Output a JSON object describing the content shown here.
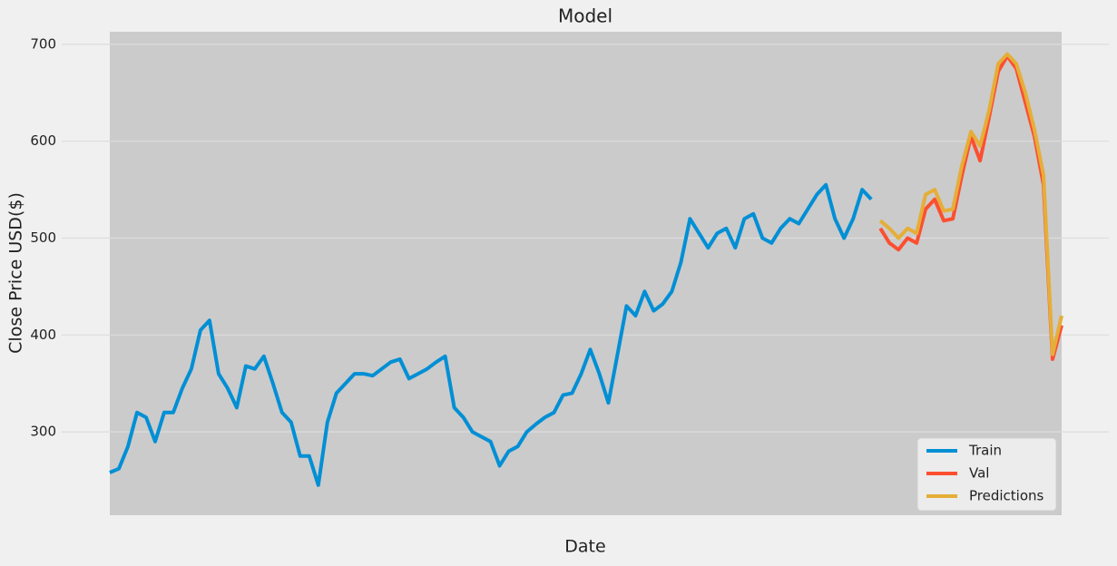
{
  "chart_data": {
    "type": "line",
    "title": "Model",
    "x_label": "Date",
    "y_label": "Close Price USD($)",
    "categories": [
      null,
      null,
      null,
      null,
      null,
      null,
      null,
      null,
      null,
      null,
      null,
      null,
      null,
      null,
      null,
      null,
      null,
      null,
      null,
      null,
      null,
      null,
      null,
      null,
      null,
      null,
      null,
      null,
      null,
      null,
      null,
      null,
      null,
      null,
      null,
      null,
      null,
      null,
      null,
      null,
      null,
      null,
      null,
      null,
      null,
      null,
      null,
      null,
      null,
      null,
      null,
      null,
      null,
      null,
      null,
      null,
      null,
      null,
      null,
      null,
      null,
      null,
      null,
      null,
      null,
      null,
      null,
      null,
      null,
      null,
      null,
      null,
      null,
      null,
      null,
      null,
      null,
      null,
      null,
      null,
      null,
      null,
      null,
      null,
      null,
      null,
      null,
      null,
      null,
      null,
      null,
      null,
      null,
      null,
      null,
      null,
      null,
      null,
      null,
      null,
      null,
      null,
      null,
      null,
      null,
      null
    ],
    "series": [
      {
        "name": "Train",
        "color": "#008fd5",
        "values": [
          258,
          262,
          285,
          320,
          315,
          290,
          320,
          320,
          345,
          365,
          405,
          415,
          360,
          345,
          325,
          368,
          365,
          378,
          350,
          320,
          310,
          275,
          275,
          245,
          310,
          340,
          350,
          360,
          360,
          358,
          365,
          372,
          375,
          355,
          360,
          365,
          372,
          378,
          325,
          315,
          300,
          295,
          290,
          265,
          280,
          285,
          300,
          308,
          315,
          320,
          338,
          340,
          360,
          385,
          360,
          330,
          380,
          430,
          420,
          445,
          425,
          432,
          445,
          475,
          520,
          505,
          490,
          505,
          510,
          490,
          520,
          525,
          500,
          495,
          510,
          520,
          515,
          530,
          545,
          555,
          520,
          500,
          520,
          550,
          540,
          null,
          null,
          null,
          null,
          null,
          null,
          null,
          null,
          null,
          null,
          null,
          null,
          null,
          null,
          null,
          null,
          null,
          null,
          null,
          null,
          null
        ]
      },
      {
        "name": "Val",
        "color": "#fc4f30",
        "values": [
          null,
          null,
          null,
          null,
          null,
          null,
          null,
          null,
          null,
          null,
          null,
          null,
          null,
          null,
          null,
          null,
          null,
          null,
          null,
          null,
          null,
          null,
          null,
          null,
          null,
          null,
          null,
          null,
          null,
          null,
          null,
          null,
          null,
          null,
          null,
          null,
          null,
          null,
          null,
          null,
          null,
          null,
          null,
          null,
          null,
          null,
          null,
          null,
          null,
          null,
          null,
          null,
          null,
          null,
          null,
          null,
          null,
          null,
          null,
          null,
          null,
          null,
          null,
          null,
          null,
          null,
          null,
          null,
          null,
          null,
          null,
          null,
          null,
          null,
          null,
          null,
          null,
          null,
          null,
          null,
          null,
          null,
          null,
          null,
          null,
          510,
          495,
          488,
          500,
          495,
          530,
          540,
          518,
          520,
          565,
          605,
          580,
          625,
          672,
          688,
          675,
          640,
          605,
          555,
          375,
          410
        ]
      },
      {
        "name": "Predictions",
        "color": "#e5ae38",
        "values": [
          null,
          null,
          null,
          null,
          null,
          null,
          null,
          null,
          null,
          null,
          null,
          null,
          null,
          null,
          null,
          null,
          null,
          null,
          null,
          null,
          null,
          null,
          null,
          null,
          null,
          null,
          null,
          null,
          null,
          null,
          null,
          null,
          null,
          null,
          null,
          null,
          null,
          null,
          null,
          null,
          null,
          null,
          null,
          null,
          null,
          null,
          null,
          null,
          null,
          null,
          null,
          null,
          null,
          null,
          null,
          null,
          null,
          null,
          null,
          null,
          null,
          null,
          null,
          null,
          null,
          null,
          null,
          null,
          null,
          null,
          null,
          null,
          null,
          null,
          null,
          null,
          null,
          null,
          null,
          null,
          null,
          null,
          null,
          null,
          null,
          518,
          510,
          500,
          510,
          505,
          545,
          550,
          528,
          530,
          575,
          610,
          595,
          632,
          680,
          690,
          680,
          650,
          612,
          565,
          380,
          420
        ]
      }
    ],
    "ylim": [
      214,
      713
    ],
    "yticks": [
      300,
      400,
      500,
      600,
      700
    ],
    "grid": true,
    "legend": "lower right"
  }
}
